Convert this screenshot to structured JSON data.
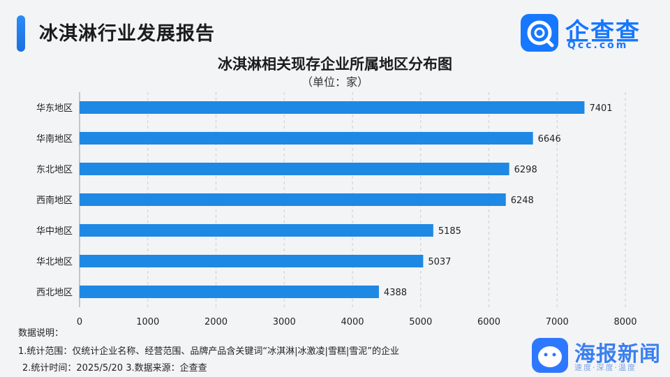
{
  "header": {
    "report_title": "冰淇淋行业发展报告"
  },
  "brand": {
    "logo_cn": "企查查",
    "logo_en": "Qcc.com"
  },
  "footer": {
    "notes_title": "数据说明：",
    "note_1": "1.统计范围：仅统计企业名称、经营范围、品牌产品含关键词“冰淇淋|冰激凌|雪糕|雪泥”的企业",
    "note_2": "2.统计时间：2025/5/20   3.数据来源：企查查",
    "media_logo_text": "海报新闻",
    "media_slogan": "速度·深度·温度"
  },
  "colors": {
    "bar": "#1e88e5",
    "accent": "#1677ff"
  },
  "chart_data": {
    "type": "bar",
    "orientation": "horizontal",
    "title": "冰淇淋相关现存企业所属地区分布图",
    "subtitle": "（单位：家）",
    "categories": [
      "华东地区",
      "华南地区",
      "东北地区",
      "西南地区",
      "华中地区",
      "华北地区",
      "西北地区"
    ],
    "values": [
      7401,
      6646,
      6298,
      6248,
      5185,
      5037,
      4388
    ],
    "xlim": [
      0,
      8000
    ],
    "xticks": [
      "0",
      "1000",
      "2000",
      "3000",
      "4000",
      "5000",
      "6000",
      "7000",
      "8000"
    ],
    "grid": true
  }
}
